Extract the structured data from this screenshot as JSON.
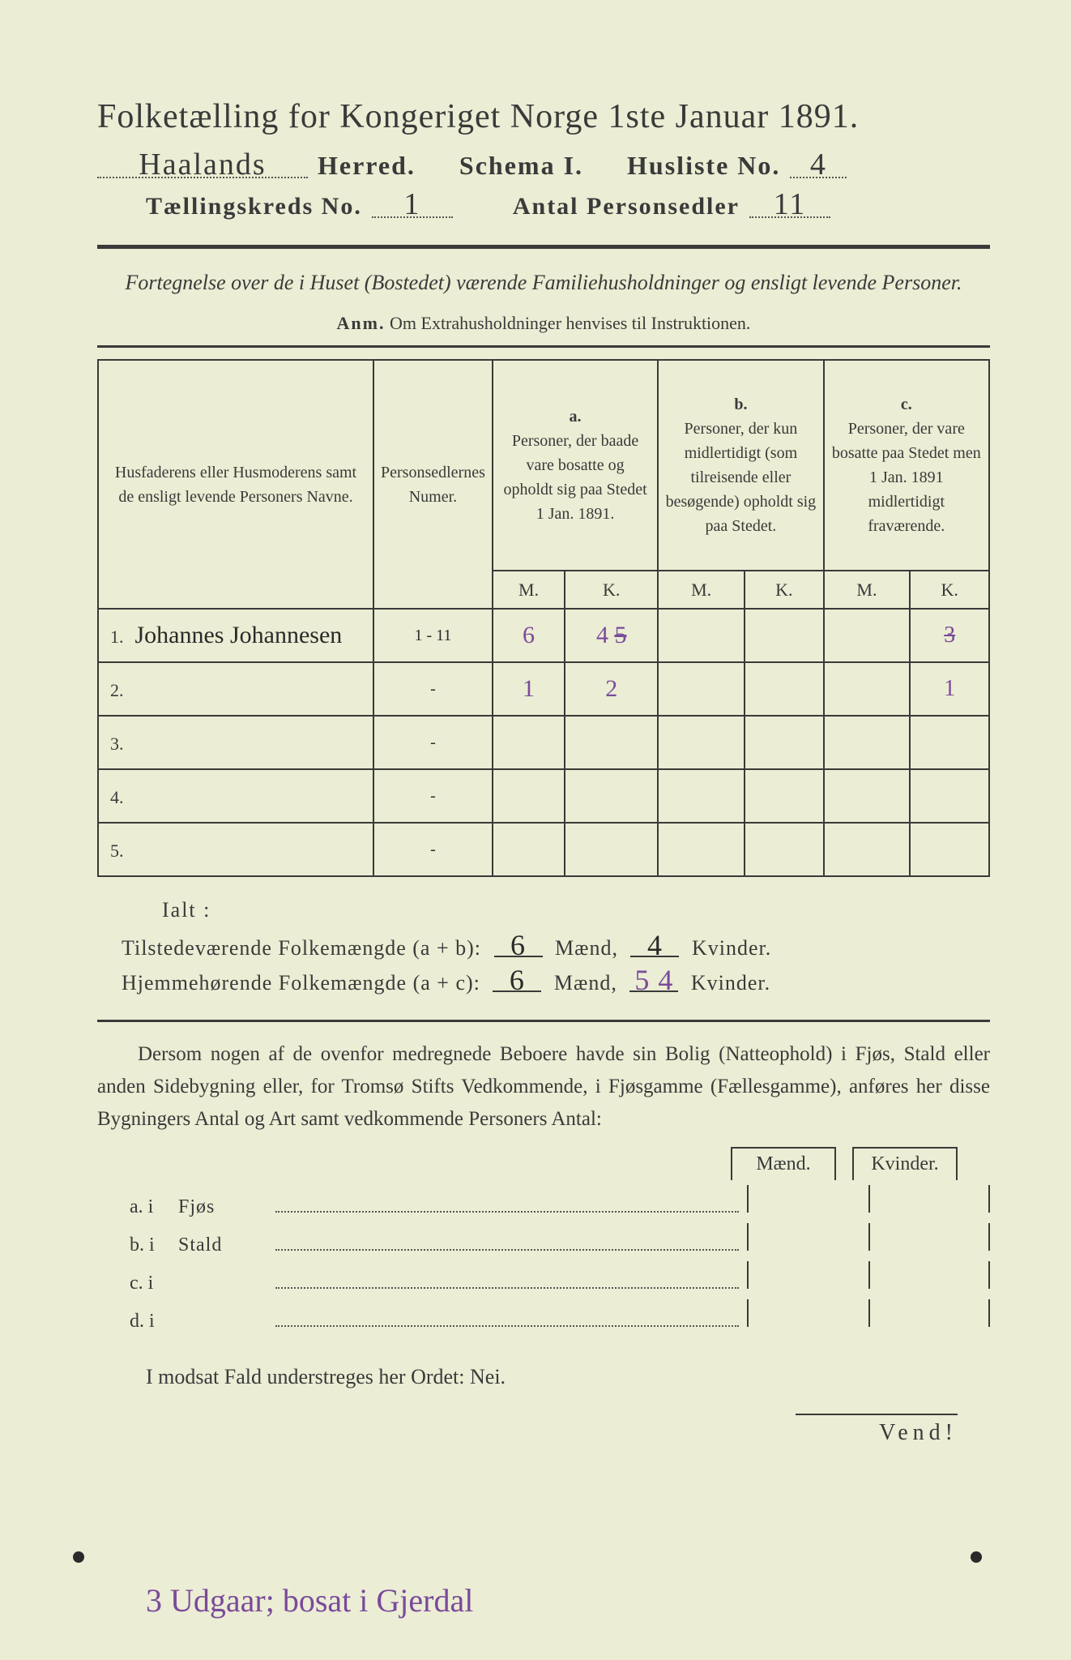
{
  "title": "Folketælling for Kongeriget Norge 1ste Januar 1891.",
  "header": {
    "herred_value": "Haalands",
    "herred_label": "Herred.",
    "schema_label": "Schema I.",
    "husliste_label": "Husliste No.",
    "husliste_value": "4",
    "kreds_label": "Tællingskreds No.",
    "kreds_value": "1",
    "sedler_label": "Antal Personsedler",
    "sedler_value": "11"
  },
  "subtitle": "Fortegnelse over de i Huset (Bostedet) værende Familiehusholdninger og ensligt levende Personer.",
  "anm_label": "Anm.",
  "anm_text": "Om Extrahusholdninger henvises til Instruktionen.",
  "table": {
    "col1": "Husfaderens eller Husmoderens samt de ensligt levende Personers Navne.",
    "col2": "Personsedlernes Numer.",
    "col_a_head": "a.",
    "col_a": "Personer, der baade vare bosatte og opholdt sig paa Stedet 1 Jan. 1891.",
    "col_b_head": "b.",
    "col_b": "Personer, der kun midlertidigt (som tilreisende eller besøgende) opholdt sig paa Stedet.",
    "col_c_head": "c.",
    "col_c": "Personer, der vare bosatte paa Stedet men 1 Jan. 1891 midlertidigt fraværende.",
    "mk_m": "M.",
    "mk_k": "K.",
    "rows": [
      {
        "n": "1.",
        "name": "Johannes Johannesen",
        "num": "1 - 11",
        "a_m": "6",
        "a_k": "4 5",
        "b_m": "",
        "b_k": "",
        "c_m": "",
        "c_k": "3"
      },
      {
        "n": "2.",
        "name": "",
        "num": "-",
        "a_m": "1",
        "a_k": "2",
        "b_m": "",
        "b_k": "",
        "c_m": "",
        "c_k": "1"
      },
      {
        "n": "3.",
        "name": "",
        "num": "-",
        "a_m": "",
        "a_k": "",
        "b_m": "",
        "b_k": "",
        "c_m": "",
        "c_k": ""
      },
      {
        "n": "4.",
        "name": "",
        "num": "-",
        "a_m": "",
        "a_k": "",
        "b_m": "",
        "b_k": "",
        "c_m": "",
        "c_k": ""
      },
      {
        "n": "5.",
        "name": "",
        "num": "-",
        "a_m": "",
        "a_k": "",
        "b_m": "",
        "b_k": "",
        "c_m": "",
        "c_k": ""
      }
    ]
  },
  "ialt": "Ialt :",
  "sum1": {
    "label": "Tilstedeværende Folkemængde (a + b):",
    "m": "6",
    "mlabel": "Mænd,",
    "k": "4",
    "klabel": "Kvinder."
  },
  "sum2": {
    "label": "Hjemmehørende Folkemængde (a + c):",
    "m": "6",
    "mlabel": "Mænd,",
    "k": "5 4",
    "klabel": "Kvinder."
  },
  "para": "Dersom nogen af de ovenfor medregnede Beboere havde sin Bolig (Natteophold) i Fjøs, Stald eller anden Sidebygning eller, for Tromsø Stifts Vedkommende, i Fjøsgamme (Fællesgamme), anføres her disse Bygningers Antal og Art samt vedkommende Personers Antal:",
  "mk_labels": {
    "m": "Mænd.",
    "k": "Kvinder."
  },
  "abcd": [
    {
      "l": "a.  i",
      "w": "Fjøs"
    },
    {
      "l": "b.  i",
      "w": "Stald"
    },
    {
      "l": "c.  i",
      "w": ""
    },
    {
      "l": "d.  i",
      "w": ""
    }
  ],
  "nei": "I modsat Fald understreges her Ordet: Nei.",
  "vend": "Vend!",
  "bottom_note": "3 Udgaar; bosat i Gjerdal"
}
